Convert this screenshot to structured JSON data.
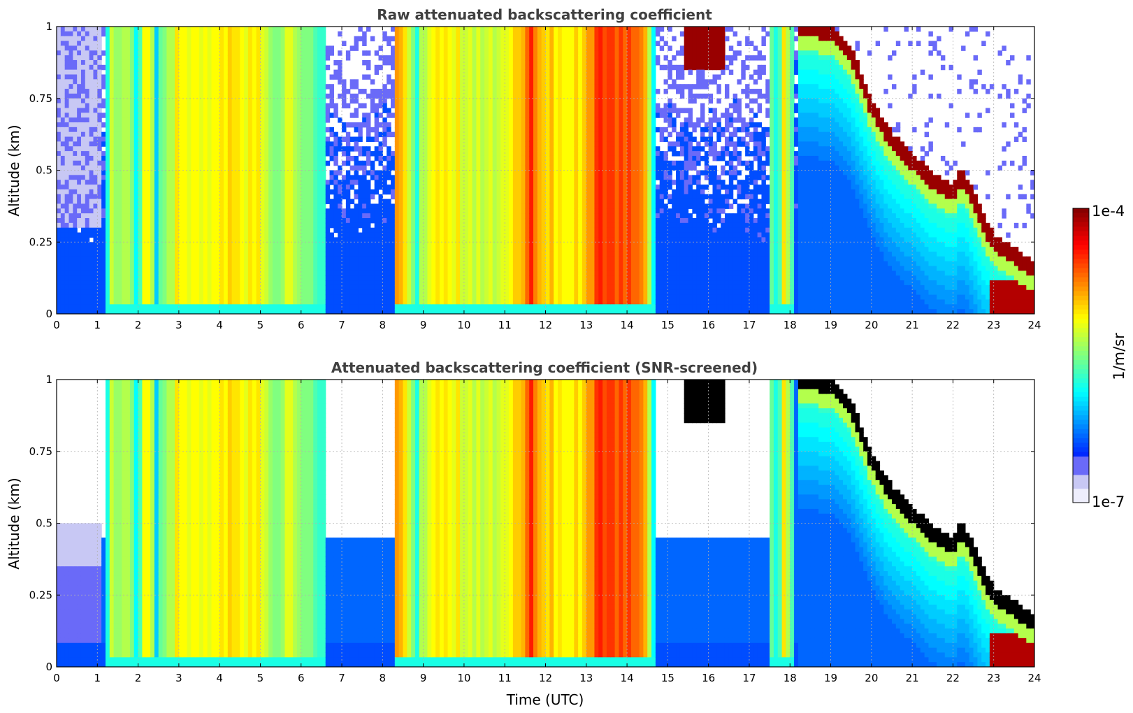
{
  "chart_data": [
    {
      "type": "heatmap",
      "title": "Raw attenuated backscattering coefficient",
      "xlabel": "",
      "ylabel": "Altitude (km)",
      "xlim": [
        0,
        24
      ],
      "ylim": [
        0,
        1
      ],
      "xticks": [
        "0",
        "1",
        "2",
        "3",
        "4",
        "5",
        "6",
        "7",
        "8",
        "9",
        "10",
        "11",
        "12",
        "13",
        "14",
        "15",
        "16",
        "17",
        "18",
        "19",
        "20",
        "21",
        "22",
        "23",
        "24"
      ],
      "yticks": [
        "0",
        "0.25",
        "0.5",
        "0.75",
        "1"
      ],
      "grid": true,
      "screened": false
    },
    {
      "type": "heatmap",
      "title": "Attenuated backscattering coefficient (SNR-screened)",
      "xlabel": "Time (UTC)",
      "ylabel": "Altitude (km)",
      "xlim": [
        0,
        24
      ],
      "ylim": [
        0,
        1
      ],
      "xticks": [
        "0",
        "1",
        "2",
        "3",
        "4",
        "5",
        "6",
        "7",
        "8",
        "9",
        "10",
        "11",
        "12",
        "13",
        "14",
        "15",
        "16",
        "17",
        "18",
        "19",
        "20",
        "21",
        "22",
        "23",
        "24"
      ],
      "yticks": [
        "0",
        "0.25",
        "0.5",
        "0.75",
        "1"
      ],
      "grid": true,
      "screened": true
    }
  ],
  "colorbar": {
    "label": "1/m/sr",
    "min_label": "1e-7",
    "max_label": "1e-4",
    "scale": "log",
    "colormap": "jet"
  },
  "colors": {
    "title": "#404040",
    "grid": "#b0b0b0",
    "saturated_screened": "#000000"
  }
}
